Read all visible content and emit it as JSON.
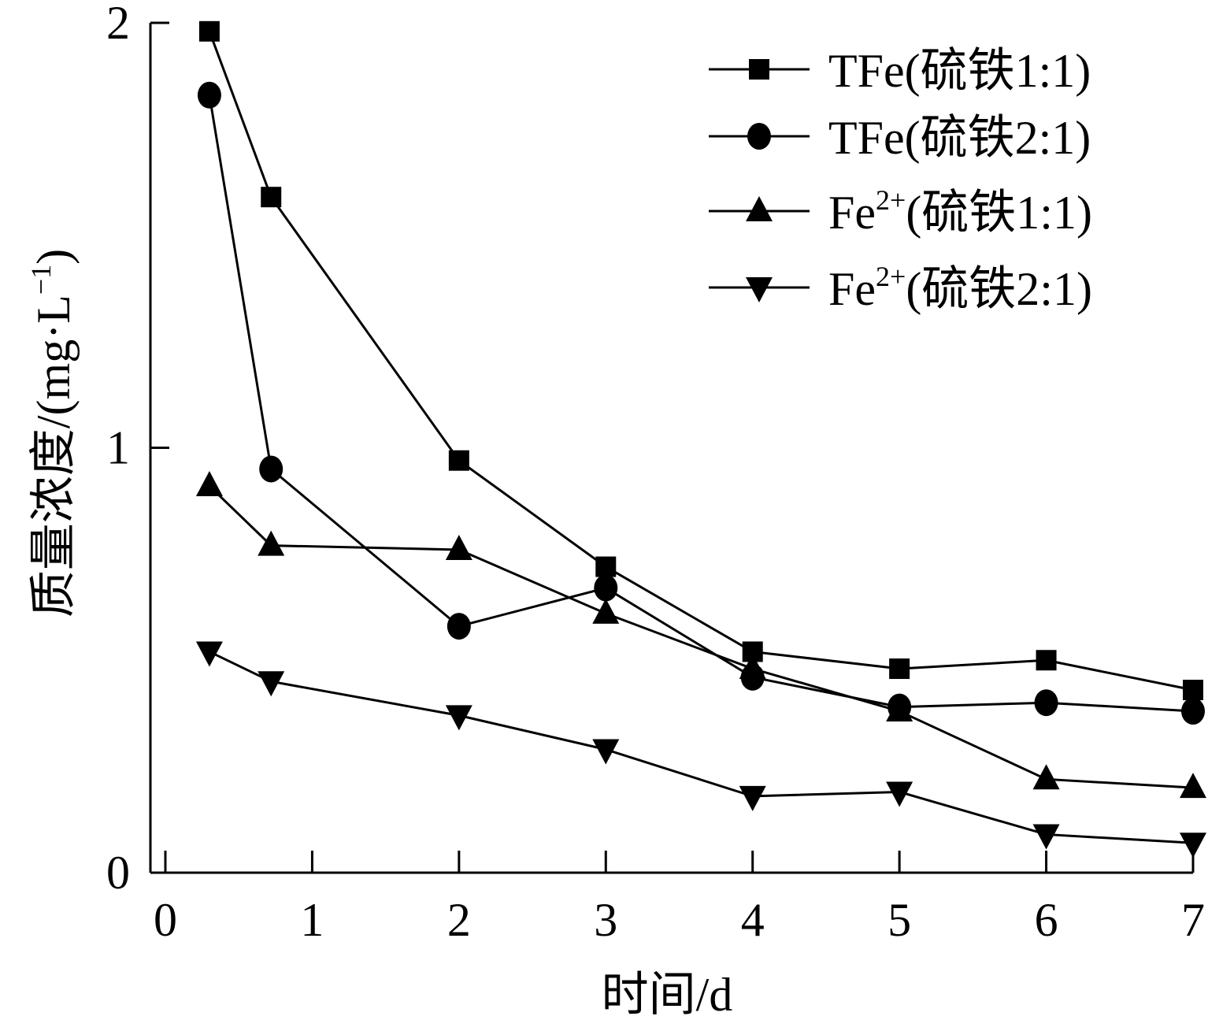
{
  "chart_data": {
    "type": "line",
    "xlabel": "时间/d",
    "ylabel": "质量浓度/(mg·L⁻¹)",
    "xlim": [
      0,
      7
    ],
    "ylim": [
      0,
      2
    ],
    "xticks": [
      "0",
      "1",
      "2",
      "3",
      "4",
      "5",
      "6",
      "7"
    ],
    "yticks": [
      "0",
      "1",
      "2"
    ],
    "grid": false,
    "legend_position": "top-right",
    "series": [
      {
        "name": "TFe(硫铁1:1)",
        "marker": "square",
        "x": [
          0.3,
          0.72,
          2,
          3,
          4,
          5,
          6,
          7
        ],
        "y": [
          1.98,
          1.59,
          0.97,
          0.72,
          0.52,
          0.48,
          0.5,
          0.43
        ]
      },
      {
        "name": "TFe(硫铁2:1)",
        "marker": "circle",
        "x": [
          0.3,
          0.72,
          2,
          3,
          4,
          5,
          6,
          7
        ],
        "y": [
          1.83,
          0.95,
          0.58,
          0.67,
          0.46,
          0.39,
          0.4,
          0.38
        ]
      },
      {
        "name": "Fe2+(硫铁1:1)",
        "marker": "triangle-up",
        "x": [
          0.3,
          0.72,
          2,
          3,
          4,
          5,
          6,
          7
        ],
        "y": [
          0.91,
          0.77,
          0.76,
          0.61,
          0.48,
          0.38,
          0.22,
          0.2
        ]
      },
      {
        "name": "Fe2+(硫铁2:1)",
        "marker": "triangle-down",
        "x": [
          0.3,
          0.72,
          2,
          3,
          4,
          5,
          6,
          7
        ],
        "y": [
          0.52,
          0.45,
          0.37,
          0.29,
          0.18,
          0.19,
          0.09,
          0.07
        ]
      }
    ]
  },
  "legend": [
    {
      "prefix": "TFe",
      "sup": "",
      "suffix": "(硫铁1:1)"
    },
    {
      "prefix": "TFe",
      "sup": "",
      "suffix": "(硫铁2:1)"
    },
    {
      "prefix": "Fe",
      "sup": "2+",
      "suffix": "(硫铁1:1)"
    },
    {
      "prefix": "Fe",
      "sup": "2+",
      "suffix": "(硫铁2:1)"
    }
  ],
  "ylabel_parts": {
    "main": "质量浓度/(mg·L",
    "sup": "−1",
    "close": ")"
  }
}
